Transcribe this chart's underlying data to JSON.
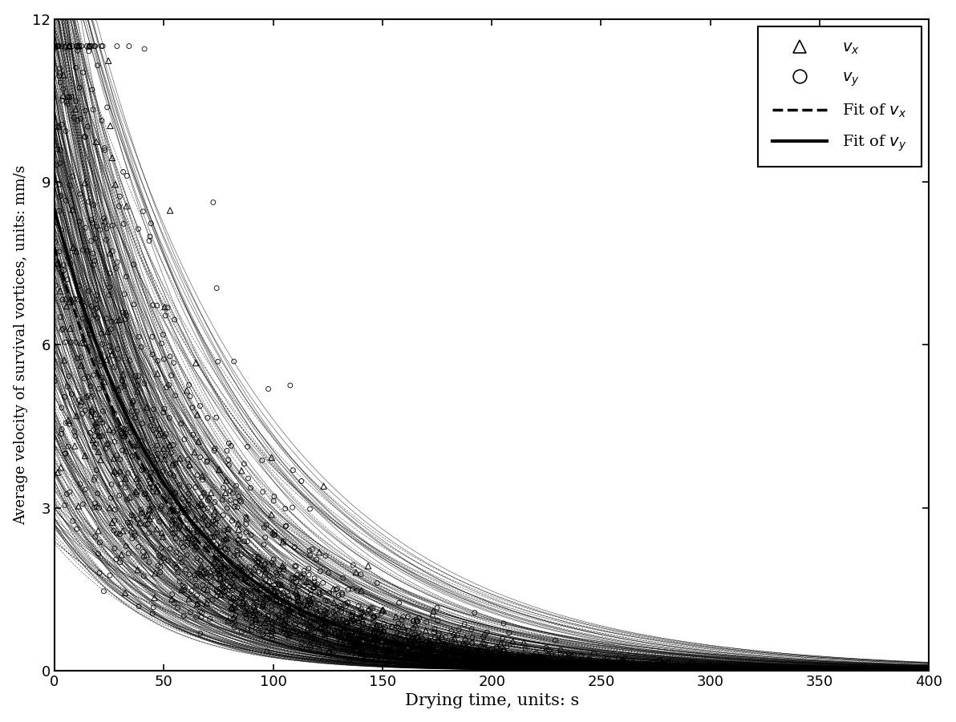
{
  "title": "",
  "xlabel": "Drying time, units: s",
  "ylabel": "Average velocity of survival vortices, units: mm/s",
  "xlim": [
    0,
    400
  ],
  "ylim": [
    0,
    12
  ],
  "xticks": [
    0,
    50,
    100,
    150,
    200,
    250,
    300,
    350,
    400
  ],
  "yticks": [
    0,
    3,
    6,
    9,
    12
  ],
  "fit_vx_a": 7.8,
  "fit_vx_b": 0.018,
  "fit_vy_a": 8.5,
  "fit_vy_b": 0.018,
  "n_vx": 600,
  "n_vy": 3000,
  "n_fits": 200,
  "seed": 42,
  "background_color": "#ffffff",
  "scatter_color": "#000000",
  "fit_color": "#000000"
}
